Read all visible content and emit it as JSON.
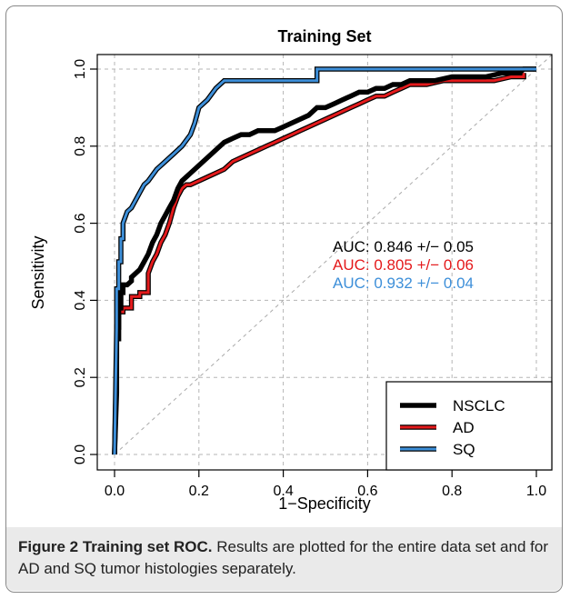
{
  "chart_data": {
    "type": "line",
    "title": "Training Set",
    "xlabel": "1−Specificity",
    "ylabel": "Sensitivity",
    "xlim": [
      0,
      1.0
    ],
    "ylim": [
      0,
      1.0
    ],
    "xticks": [
      "0.0",
      "0.2",
      "0.4",
      "0.6",
      "0.8",
      "1.0"
    ],
    "yticks": [
      "0.0",
      "0.2",
      "0.4",
      "0.6",
      "0.8",
      "1.0"
    ],
    "grid": true,
    "legend_position": "bottom-right",
    "reference_line": "diagonal",
    "series": [
      {
        "name": "NSCLC",
        "color": "#000000",
        "auc_text": "AUC: 0.846 +/− 0.05",
        "x": [
          0,
          0.005,
          0.005,
          0.01,
          0.01,
          0.015,
          0.015,
          0.02,
          0.02,
          0.03,
          0.04,
          0.04,
          0.05,
          0.06,
          0.07,
          0.08,
          0.09,
          0.1,
          0.11,
          0.12,
          0.13,
          0.14,
          0.15,
          0.16,
          0.17,
          0.18,
          0.2,
          0.22,
          0.24,
          0.26,
          0.28,
          0.3,
          0.32,
          0.34,
          0.36,
          0.38,
          0.4,
          0.42,
          0.44,
          0.46,
          0.48,
          0.5,
          0.52,
          0.54,
          0.56,
          0.58,
          0.6,
          0.62,
          0.64,
          0.66,
          0.68,
          0.7,
          0.72,
          0.74,
          0.76,
          0.8,
          0.84,
          0.88,
          0.92,
          0.96,
          0.97,
          1.0
        ],
        "y": [
          0,
          0.16,
          0.3,
          0.3,
          0.38,
          0.38,
          0.42,
          0.42,
          0.44,
          0.44,
          0.45,
          0.46,
          0.47,
          0.48,
          0.5,
          0.52,
          0.55,
          0.57,
          0.6,
          0.62,
          0.64,
          0.66,
          0.69,
          0.71,
          0.72,
          0.73,
          0.75,
          0.77,
          0.79,
          0.81,
          0.82,
          0.83,
          0.83,
          0.84,
          0.84,
          0.84,
          0.85,
          0.86,
          0.87,
          0.88,
          0.9,
          0.9,
          0.91,
          0.92,
          0.93,
          0.94,
          0.94,
          0.95,
          0.95,
          0.96,
          0.96,
          0.97,
          0.97,
          0.97,
          0.97,
          0.98,
          0.98,
          0.98,
          0.99,
          0.99,
          1.0,
          1.0
        ]
      },
      {
        "name": "AD",
        "color": "#e41a1c",
        "auc_text": "AUC: 0.805 +/− 0.06",
        "x": [
          0,
          0.005,
          0.005,
          0.01,
          0.01,
          0.02,
          0.02,
          0.04,
          0.04,
          0.06,
          0.06,
          0.08,
          0.08,
          0.09,
          0.1,
          0.11,
          0.12,
          0.13,
          0.14,
          0.15,
          0.16,
          0.17,
          0.18,
          0.2,
          0.22,
          0.24,
          0.26,
          0.28,
          0.3,
          0.32,
          0.34,
          0.36,
          0.38,
          0.4,
          0.42,
          0.44,
          0.46,
          0.48,
          0.5,
          0.52,
          0.54,
          0.56,
          0.58,
          0.6,
          0.62,
          0.64,
          0.66,
          0.68,
          0.7,
          0.74,
          0.78,
          0.82,
          0.86,
          0.9,
          0.94,
          0.97,
          0.97
        ],
        "y": [
          0,
          0.25,
          0.33,
          0.33,
          0.37,
          0.37,
          0.38,
          0.38,
          0.41,
          0.41,
          0.42,
          0.42,
          0.47,
          0.5,
          0.52,
          0.55,
          0.57,
          0.6,
          0.64,
          0.67,
          0.69,
          0.7,
          0.7,
          0.71,
          0.72,
          0.73,
          0.74,
          0.76,
          0.77,
          0.78,
          0.79,
          0.8,
          0.81,
          0.82,
          0.83,
          0.84,
          0.85,
          0.86,
          0.87,
          0.88,
          0.89,
          0.9,
          0.91,
          0.92,
          0.93,
          0.93,
          0.94,
          0.95,
          0.96,
          0.96,
          0.97,
          0.97,
          0.97,
          0.97,
          0.98,
          0.98,
          0.99
        ]
      },
      {
        "name": "SQ",
        "color": "#3d8fd9",
        "auc_text": "AUC: 0.932 +/− 0.04",
        "x": [
          0,
          0.005,
          0.005,
          0.01,
          0.01,
          0.015,
          0.015,
          0.02,
          0.02,
          0.03,
          0.04,
          0.05,
          0.06,
          0.07,
          0.08,
          0.1,
          0.12,
          0.14,
          0.16,
          0.18,
          0.19,
          0.2,
          0.22,
          0.24,
          0.26,
          0.48,
          0.48,
          1.0
        ],
        "y": [
          0,
          0.33,
          0.43,
          0.43,
          0.5,
          0.5,
          0.56,
          0.56,
          0.6,
          0.63,
          0.64,
          0.66,
          0.68,
          0.7,
          0.71,
          0.74,
          0.76,
          0.78,
          0.8,
          0.83,
          0.86,
          0.9,
          0.92,
          0.95,
          0.97,
          0.97,
          1.0,
          1.0
        ]
      }
    ]
  },
  "caption": {
    "bold": "Figure 2 Training set ROC.",
    "text": " Results are plotted for the entire data set and for AD and SQ tumor histologies separately."
  }
}
